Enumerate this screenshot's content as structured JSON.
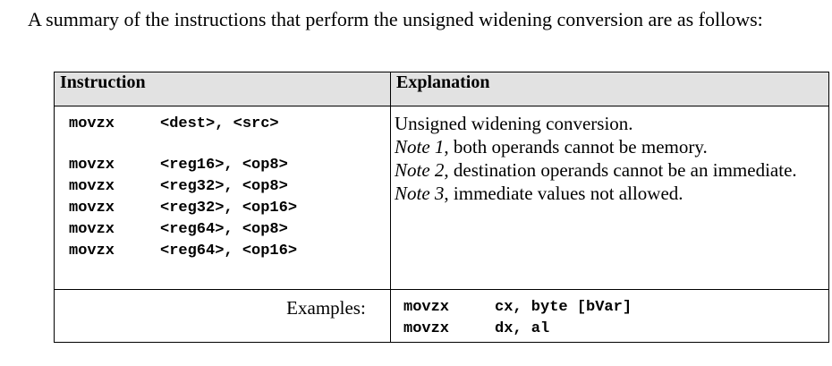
{
  "intro": "A summary of the instructions that perform the unsigned widening conversion are as follows:",
  "table": {
    "headers": [
      "Instruction",
      "Explanation"
    ],
    "instructions": [
      {
        "op": "movzx",
        "args": "<dest>, <src>"
      },
      {
        "op": "movzx",
        "args": "<reg16>, <op8>"
      },
      {
        "op": "movzx",
        "args": "<reg32>, <op8>"
      },
      {
        "op": "movzx",
        "args": "<reg32>, <op16>"
      },
      {
        "op": "movzx",
        "args": "<reg64>, <op8>"
      },
      {
        "op": "movzx",
        "args": "<reg64>, <op16>"
      }
    ],
    "explanation": {
      "line1": "Unsigned widening conversion.",
      "note1_label": "Note 1",
      "note1_text": ", both operands cannot be memory.",
      "note2_label": "Note 2",
      "note2_text": ", destination operands cannot be an immediate.",
      "note3_label": "Note 3",
      "note3_text": ", immediate values not allowed."
    },
    "examples_label": "Examples:",
    "examples": [
      {
        "op": "movzx",
        "args": "cx, byte [bVar]"
      },
      {
        "op": "movzx",
        "args": "dx, al"
      }
    ]
  }
}
